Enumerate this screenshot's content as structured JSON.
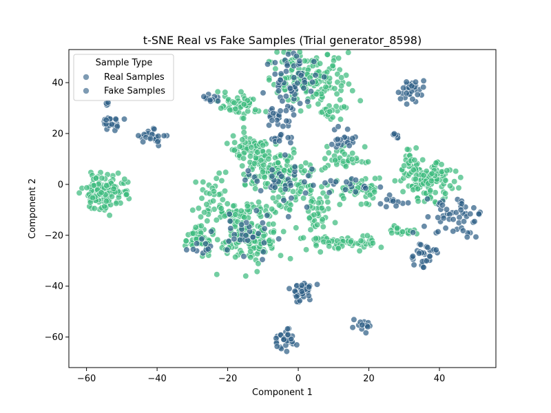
{
  "chart_data": {
    "type": "scatter",
    "title": "t-SNE Real vs Fake Samples (Trial generator_8598)",
    "xlabel": "Component 1",
    "ylabel": "Component 2",
    "xlim": [
      -65,
      56
    ],
    "ylim": [
      -72,
      53
    ],
    "xticks": [
      -60,
      -40,
      -20,
      0,
      20,
      40
    ],
    "yticks": [
      -60,
      -40,
      -20,
      0,
      20,
      40
    ],
    "xtick_labels": [
      "−60",
      "−40",
      "−20",
      "0",
      "20",
      "40"
    ],
    "ytick_labels": [
      "−60",
      "−40",
      "−20",
      "0",
      "20",
      "40"
    ],
    "grid": false,
    "legend": {
      "title": "Sample Type",
      "placement": "top-left",
      "entries": [
        "Real Samples",
        "Fake Samples"
      ],
      "marker_color": "#7e9bb3"
    },
    "colors": {
      "real": "#2f5f87",
      "fake": "#3dbb7e"
    },
    "clusters": [
      {
        "series": "fake",
        "cx": 3,
        "cy": 41,
        "sx": 5.5,
        "sy": 5,
        "n": 150
      },
      {
        "series": "real",
        "cx": -1,
        "cy": 40,
        "sx": 3.5,
        "sy": 6,
        "n": 55
      },
      {
        "series": "fake",
        "cx": 9,
        "cy": 30,
        "sx": 1.8,
        "sy": 2.5,
        "n": 20
      },
      {
        "series": "fake",
        "cx": -17,
        "cy": 31,
        "sx": 3,
        "sy": 2.5,
        "n": 50
      },
      {
        "series": "real",
        "cx": -25,
        "cy": 34,
        "sx": 1.5,
        "sy": 1,
        "n": 10
      },
      {
        "series": "real",
        "cx": 32,
        "cy": 37,
        "sx": 2,
        "sy": 2,
        "n": 30
      },
      {
        "series": "real",
        "cx": -53,
        "cy": 24,
        "sx": 1.5,
        "sy": 1.2,
        "n": 20
      },
      {
        "series": "real",
        "cx": -54,
        "cy": 32,
        "sx": 0.5,
        "sy": 0.5,
        "n": 5
      },
      {
        "series": "real",
        "cx": -41,
        "cy": 19,
        "sx": 2,
        "sy": 1.5,
        "n": 25
      },
      {
        "series": "real",
        "cx": -6,
        "cy": 27,
        "sx": 1.5,
        "sy": 2.5,
        "n": 20
      },
      {
        "series": "real",
        "cx": 13,
        "cy": 18,
        "sx": 2,
        "sy": 2,
        "n": 20
      },
      {
        "series": "real",
        "cx": -5,
        "cy": 18,
        "sx": 1.5,
        "sy": 1.2,
        "n": 12
      },
      {
        "series": "fake",
        "cx": -55,
        "cy": -3,
        "sx": 3,
        "sy": 3.5,
        "n": 120
      },
      {
        "series": "fake",
        "cx": -14,
        "cy": 14,
        "sx": 3.5,
        "sy": 2.5,
        "n": 60
      },
      {
        "series": "fake",
        "cx": -8,
        "cy": 6,
        "sx": 5,
        "sy": 4,
        "n": 110
      },
      {
        "series": "fake",
        "cx": -1,
        "cy": -1,
        "sx": 4,
        "sy": 4,
        "n": 60
      },
      {
        "series": "real",
        "cx": -4,
        "cy": 2,
        "sx": 6,
        "sy": 5,
        "n": 35
      },
      {
        "series": "fake",
        "cx": 13,
        "cy": 10,
        "sx": 3,
        "sy": 2.5,
        "n": 35
      },
      {
        "series": "fake",
        "cx": 18,
        "cy": -2,
        "sx": 4,
        "sy": 2.5,
        "n": 45
      },
      {
        "series": "real",
        "cx": 15,
        "cy": -1,
        "sx": 4,
        "sy": 2,
        "n": 15
      },
      {
        "series": "fake",
        "cx": 5,
        "cy": -12,
        "sx": 2,
        "sy": 4,
        "n": 35
      },
      {
        "series": "fake",
        "cx": -16,
        "cy": -11,
        "sx": 6,
        "sy": 2,
        "n": 60
      },
      {
        "series": "fake",
        "cx": -25,
        "cy": -5,
        "sx": 2.5,
        "sy": 4,
        "n": 25
      },
      {
        "series": "fake",
        "cx": -13,
        "cy": -22,
        "sx": 4.5,
        "sy": 5,
        "n": 120
      },
      {
        "series": "real",
        "cx": -15,
        "cy": -20,
        "sx": 4,
        "sy": 5,
        "n": 30
      },
      {
        "series": "fake",
        "cx": -28,
        "cy": -21,
        "sx": 2,
        "sy": 3,
        "n": 50
      },
      {
        "series": "real",
        "cx": -27,
        "cy": -24,
        "sx": 2,
        "sy": 2,
        "n": 10
      },
      {
        "series": "fake",
        "cx": 12,
        "cy": -23,
        "sx": 5,
        "sy": 1.5,
        "n": 60
      },
      {
        "series": "fake",
        "cx": 37,
        "cy": 1,
        "sx": 3.5,
        "sy": 3.5,
        "n": 120
      },
      {
        "series": "fake",
        "cx": 32,
        "cy": 9,
        "sx": 1.5,
        "sy": 3,
        "n": 25
      },
      {
        "series": "fake",
        "cx": 29,
        "cy": -18,
        "sx": 2,
        "sy": 1,
        "n": 20
      },
      {
        "series": "real",
        "cx": 44,
        "cy": -12,
        "sx": 4,
        "sy": 4,
        "n": 50
      },
      {
        "series": "real",
        "cx": 35,
        "cy": -28,
        "sx": 2,
        "sy": 3,
        "n": 30
      },
      {
        "series": "real",
        "cx": 1,
        "cy": -42,
        "sx": 1.8,
        "sy": 2,
        "n": 40
      },
      {
        "series": "real",
        "cx": -4,
        "cy": -61,
        "sx": 1.8,
        "sy": 2,
        "n": 30
      },
      {
        "series": "real",
        "cx": 18,
        "cy": -56,
        "sx": 1.5,
        "sy": 1,
        "n": 15
      },
      {
        "series": "real",
        "cx": 28,
        "cy": 19,
        "sx": 1,
        "sy": 0.8,
        "n": 8
      },
      {
        "series": "real",
        "cx": 27,
        "cy": -7,
        "sx": 2,
        "sy": 1,
        "n": 12
      }
    ]
  }
}
